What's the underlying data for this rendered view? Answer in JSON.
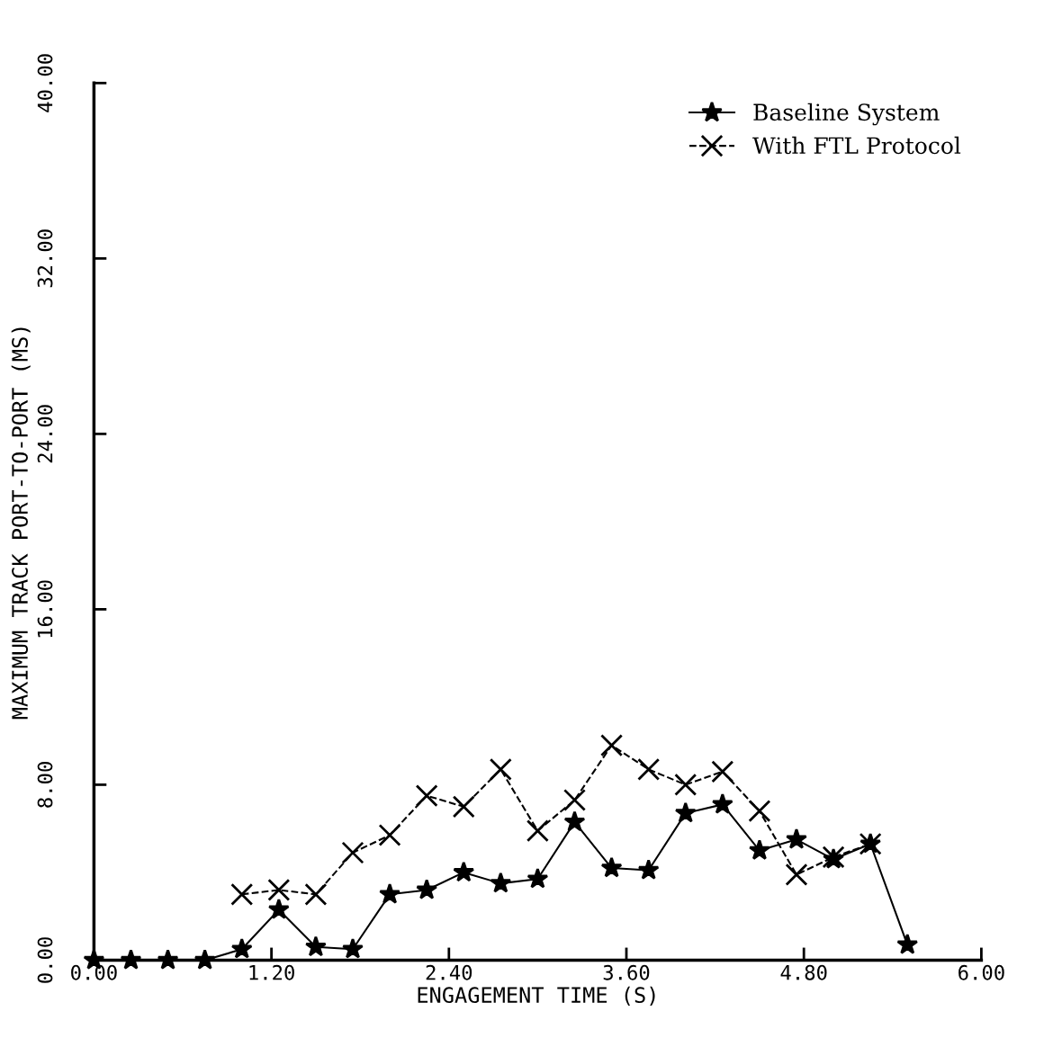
{
  "chart_data": {
    "type": "line",
    "xlabel": "ENGAGEMENT TIME (S)",
    "ylabel": "MAXIMUM TRACK PORT-TO-PORT (MS)",
    "x": [
      0,
      0.25,
      0.5,
      0.75,
      1.0,
      1.25,
      1.5,
      1.75,
      2.0,
      2.25,
      2.5,
      2.75,
      3.0,
      3.25,
      3.5,
      3.75,
      4.0,
      4.25,
      4.5,
      4.75,
      5.0,
      5.25,
      5.5
    ],
    "series": [
      {
        "name": "Baseline System",
        "color": "#000000",
        "marker": "star",
        "line_style": "solid",
        "values": [
          0,
          0,
          0,
          0,
          0.5,
          2.3,
          0.6,
          0.5,
          3.0,
          3.2,
          4.0,
          3.5,
          3.7,
          6.3,
          4.2,
          4.1,
          6.7,
          7.1,
          5.0,
          5.5,
          4.6,
          5.3,
          0.7
        ]
      },
      {
        "name": "With FTL Protocol",
        "color": "#000000",
        "marker": "cross",
        "line_style": "dashed",
        "values": [
          null,
          null,
          null,
          null,
          3.0,
          3.2,
          3.0,
          4.9,
          5.7,
          7.5,
          7.0,
          8.7,
          5.9,
          7.3,
          9.8,
          8.7,
          8.0,
          8.6,
          6.8,
          3.9,
          4.7,
          5.3,
          null
        ]
      }
    ],
    "xlim": [
      0,
      6
    ],
    "ylim": [
      0,
      40
    ],
    "xticks": [
      {
        "value": 0,
        "label": "0.00"
      },
      {
        "value": 1.2,
        "label": "1.20"
      },
      {
        "value": 2.4,
        "label": "2.40"
      },
      {
        "value": 3.6,
        "label": "3.60"
      },
      {
        "value": 4.8,
        "label": "4.80"
      },
      {
        "value": 6,
        "label": "6.00"
      }
    ],
    "yticks": [
      {
        "value": 0,
        "label": "0.00"
      },
      {
        "value": 8,
        "label": "8.00"
      },
      {
        "value": 16,
        "label": "16.00"
      },
      {
        "value": 24,
        "label": "24.00"
      },
      {
        "value": 32,
        "label": "32.00"
      },
      {
        "value": 40,
        "label": "40.00"
      }
    ],
    "legend": "top right",
    "grid": false
  }
}
